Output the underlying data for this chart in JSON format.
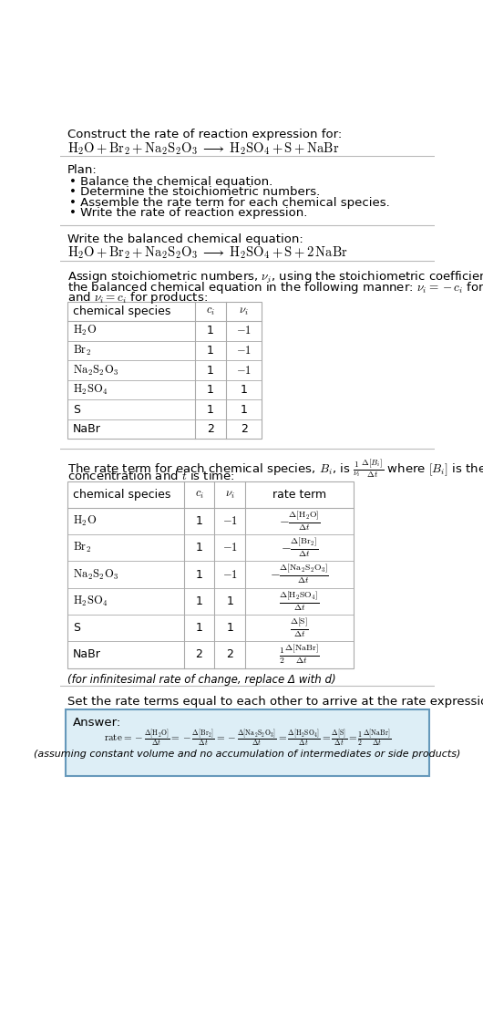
{
  "title_line1": "Construct the rate of reaction expression for:",
  "plan_header": "Plan:",
  "plan_items": [
    "• Balance the chemical equation.",
    "• Determine the stoichiometric numbers.",
    "• Assemble the rate term for each chemical species.",
    "• Write the rate of reaction expression."
  ],
  "balanced_header": "Write the balanced chemical equation:",
  "stoich_intro_1": "Assign stoichiometric numbers, $\\nu_i$, using the stoichiometric coefficients, $c_i$, from",
  "stoich_intro_2": "the balanced chemical equation in the following manner: $\\nu_i = -c_i$ for reactants",
  "stoich_intro_3": "and $\\nu_i = c_i$ for products:",
  "table1_rows": [
    [
      "$\\mathrm{H_2O}$",
      "1",
      "$-1$"
    ],
    [
      "$\\mathrm{Br_2}$",
      "1",
      "$-1$"
    ],
    [
      "$\\mathrm{Na_2S_2O_3}$",
      "1",
      "$-1$"
    ],
    [
      "$\\mathrm{H_2SO_4}$",
      "1",
      "1"
    ],
    [
      "S",
      "1",
      "1"
    ],
    [
      "NaBr",
      "2",
      "2"
    ]
  ],
  "rate_intro_1": "The rate term for each chemical species, $B_i$, is $\\frac{1}{\\nu_i}\\frac{\\Delta[B_i]}{\\Delta t}$ where $[B_i]$ is the amount",
  "rate_intro_2": "concentration and $t$ is time:",
  "table2_rows": [
    [
      "$\\mathrm{H_2O}$",
      "1",
      "$-1$",
      "$-\\frac{\\Delta[\\mathrm{H_2O}]}{\\Delta t}$"
    ],
    [
      "$\\mathrm{Br_2}$",
      "1",
      "$-1$",
      "$-\\frac{\\Delta[\\mathrm{Br_2}]}{\\Delta t}$"
    ],
    [
      "$\\mathrm{Na_2S_2O_3}$",
      "1",
      "$-1$",
      "$-\\frac{\\Delta[\\mathrm{Na_2S_2O_3}]}{\\Delta t}$"
    ],
    [
      "$\\mathrm{H_2SO_4}$",
      "1",
      "1",
      "$\\frac{\\Delta[\\mathrm{H_2SO_4}]}{\\Delta t}$"
    ],
    [
      "S",
      "1",
      "1",
      "$\\frac{\\Delta[\\mathrm{S}]}{\\Delta t}$"
    ],
    [
      "NaBr",
      "2",
      "2",
      "$\\frac{1}{2}\\frac{\\Delta[\\mathrm{NaBr}]}{\\Delta t}$"
    ]
  ],
  "infinitesimal_note": "(for infinitesimal rate of change, replace Δ with d)",
  "set_equal_text": "Set the rate terms equal to each other to arrive at the rate expression:",
  "answer_label": "Answer:",
  "assuming_note": "(assuming constant volume and no accumulation of intermediates or side products)",
  "answer_box_color": "#ddeef6",
  "answer_box_border": "#6699bb",
  "bg_color": "#ffffff",
  "text_color": "#000000",
  "table_line_color": "#aaaaaa",
  "section_line_color": "#bbbbbb"
}
